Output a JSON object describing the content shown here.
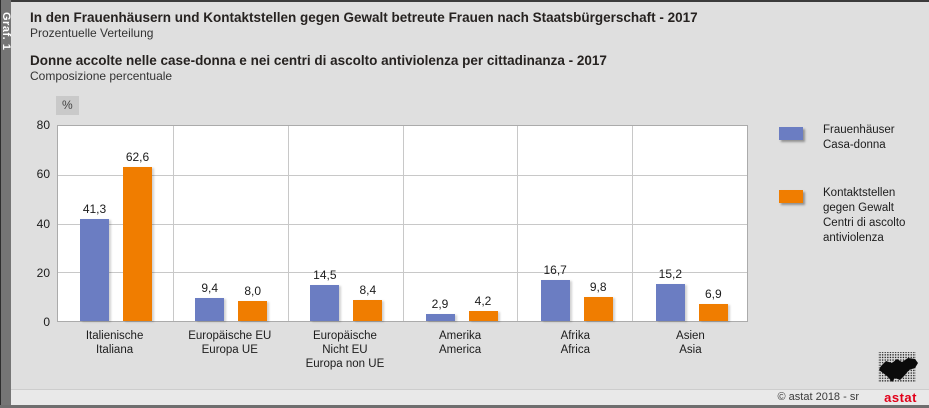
{
  "graf_label": "Graf. 1",
  "header": {
    "title_de": "In den Frauenhäusern und Kontaktstellen gegen Gewalt betreute Frauen nach Staatsbürgerschaft - 2017",
    "subtitle_de": "Prozentuelle Verteilung",
    "title_it": "Donne accolte nelle case-donna e nei centri di ascolto antiviolenza per cittadinanza - 2017",
    "subtitle_it": "Composizione percentuale"
  },
  "chart_data": {
    "type": "bar",
    "unit_label": "%",
    "categories": [
      [
        "Italienische",
        "Italiana"
      ],
      [
        "Europäische EU",
        "Europa UE"
      ],
      [
        "Europäische",
        "Nicht EU",
        "Europa non UE"
      ],
      [
        "Amerika",
        "America"
      ],
      [
        "Afrika",
        "Africa"
      ],
      [
        "Asien",
        "Asia"
      ]
    ],
    "series": [
      {
        "name": "Frauenhäuser / Casa-donna",
        "color": "#6b7dc2",
        "values": [
          41.3,
          9.4,
          14.5,
          2.9,
          16.7,
          15.2
        ]
      },
      {
        "name": "Kontaktstellen gegen Gewalt / Centri di ascolto antiviolenza",
        "color": "#f07d00",
        "values": [
          62.6,
          8.0,
          8.4,
          4.2,
          9.8,
          6.9
        ]
      }
    ],
    "ylim": [
      0,
      80
    ],
    "yticks": [
      80,
      60,
      40,
      20,
      0
    ],
    "grid": true,
    "legend_position": "right",
    "decimal_separator": ","
  },
  "legend": {
    "items": [
      {
        "color": "#6b7dc2",
        "lines": [
          "Frauenhäuser",
          "Casa-donna"
        ]
      },
      {
        "color": "#f07d00",
        "lines": [
          "Kontaktstellen",
          "gegen Gewalt",
          "Centri di ascolto",
          "antiviolenza"
        ]
      }
    ]
  },
  "footer": {
    "copyright": "© astat 2018 - sr",
    "logo_text": "astat"
  },
  "colors": {
    "series_blue": "#6b7dc2",
    "series_orange": "#f07d00",
    "background": "#dfdfdf",
    "plot_background": "#ffffff",
    "logo_red": "#e2001a"
  }
}
